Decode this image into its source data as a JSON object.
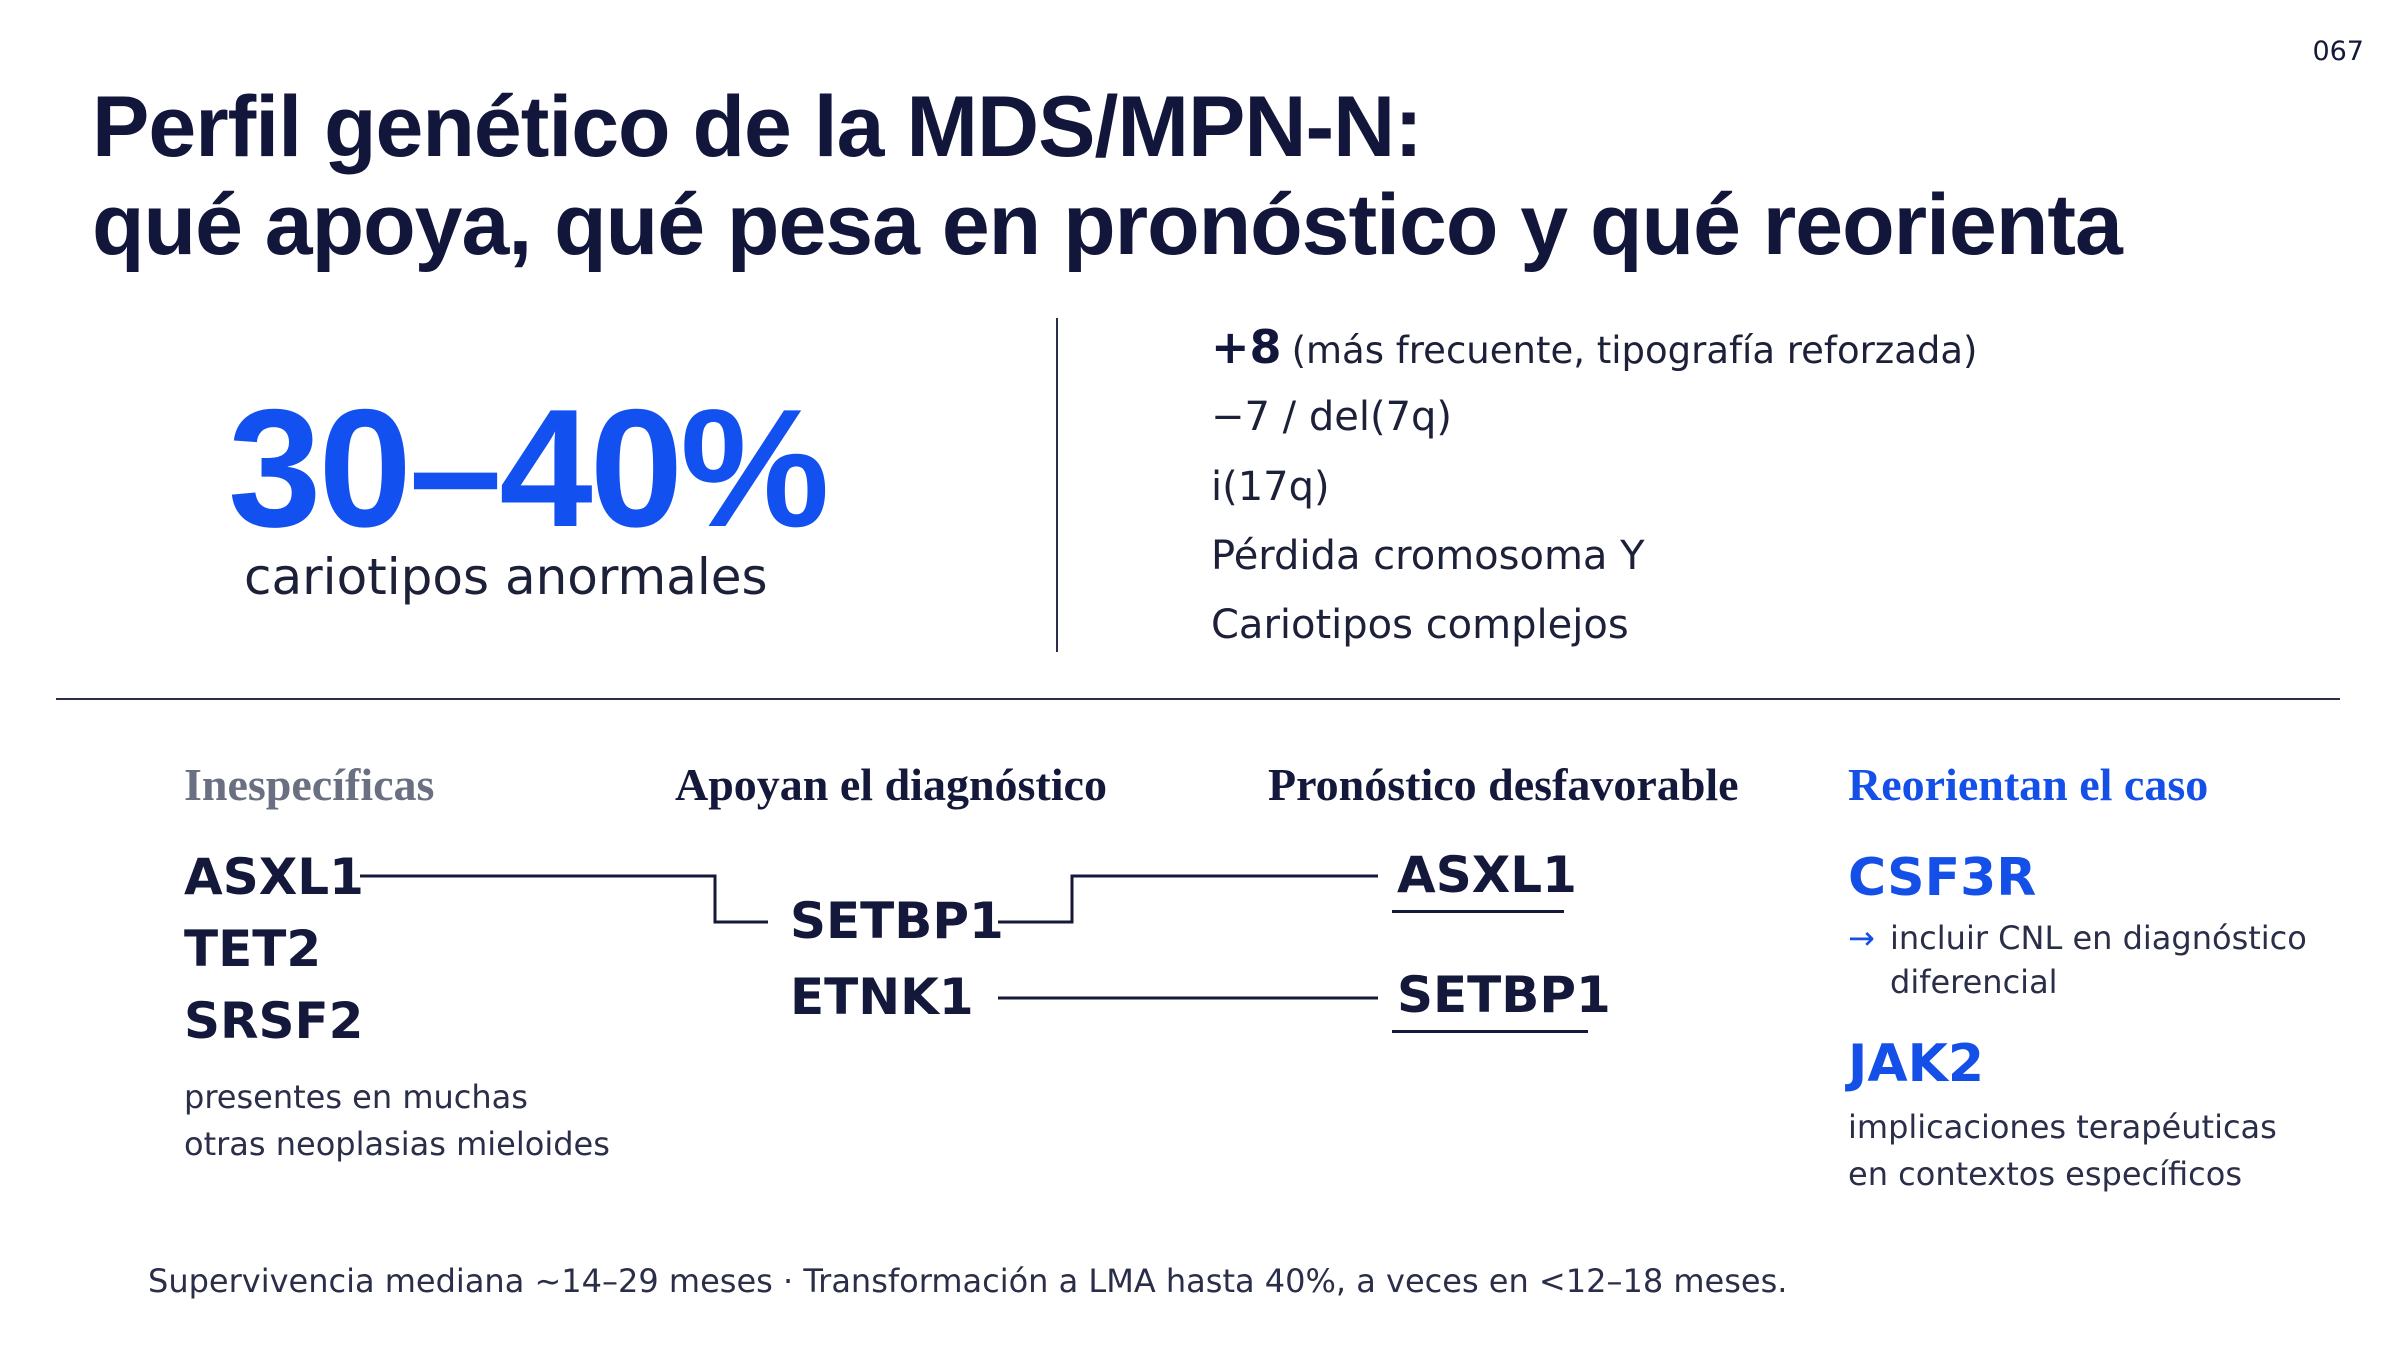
{
  "page_number": "067",
  "title": {
    "line1": "Perfil genético de la MDS/MPN-N:",
    "line2": "qué apoya, qué pesa en pronóstico y qué reorienta"
  },
  "stat": {
    "value": "30–40%",
    "caption": "cariotipos anormales"
  },
  "karyotypes": [
    {
      "label": "+8",
      "note": "(más frecuente, tipografía reforzada)"
    },
    {
      "label": "−7 / del(7q)"
    },
    {
      "label": "i(17q)"
    },
    {
      "label": "Pérdida cromosoma Y"
    },
    {
      "label": "Cariotipos complejos"
    }
  ],
  "columns": {
    "inespecificas": {
      "heading": "Inespecíficas",
      "genes": [
        "ASXL1",
        "TET2",
        "SRSF2"
      ],
      "note_lines": [
        "presentes en muchas",
        "otras neoplasias mieloides"
      ]
    },
    "apoyan": {
      "heading": "Apoyan el diagnóstico",
      "genes": [
        "SETBP1",
        "ETNK1"
      ]
    },
    "pronostico": {
      "heading": "Pronóstico desfavorable",
      "genes": [
        "ASXL1",
        "SETBP1"
      ]
    },
    "reorientan": {
      "heading": "Reorientan el caso",
      "csf3r": {
        "gene": "CSF3R",
        "arrow": "→",
        "note_lines": [
          "incluir CNL en diagnóstico",
          "diferencial"
        ]
      },
      "jak2": {
        "gene": "JAK2",
        "note_lines": [
          "implicaciones terapéuticas",
          "en contextos específicos"
        ]
      }
    }
  },
  "footer": "Supervivencia mediana ~14–29 meses · Transformación a LMA hasta  40%, a veces en <12–18 meses.",
  "colors": {
    "accent_blue": "#1250f0",
    "title_navy": "#12163a",
    "muted_gray": "#6a7082",
    "background": "#ffffff"
  }
}
